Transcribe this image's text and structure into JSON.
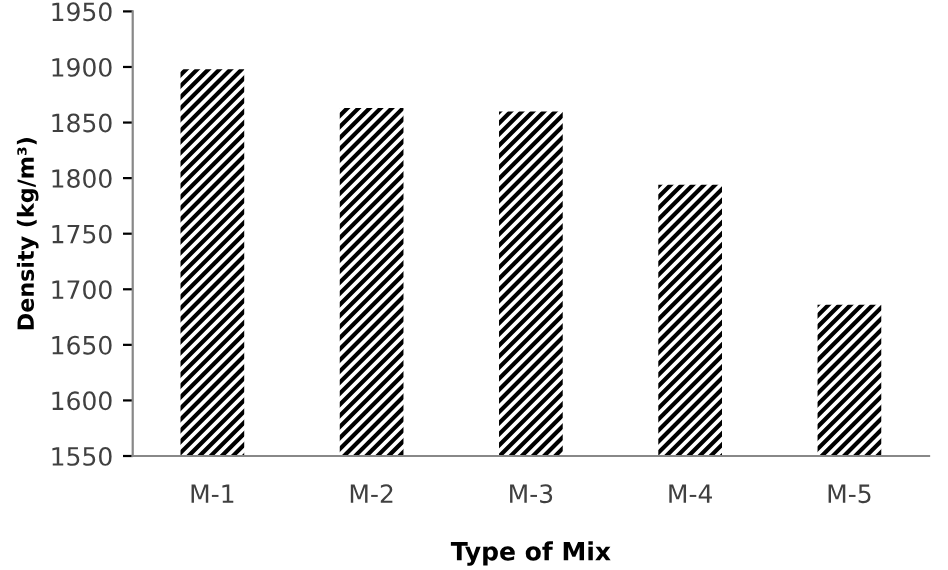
{
  "chart_data": {
    "type": "bar",
    "xlabel": "Type of Mix",
    "ylabel": "Density (kg/m³)",
    "categories": [
      "M-1",
      "M-2",
      "M-3",
      "M-4",
      "M-5"
    ],
    "values": [
      1898,
      1863,
      1860,
      1794,
      1686
    ],
    "color": "#000000",
    "ylim": [
      1550,
      1950
    ],
    "yticks": [
      1550,
      1600,
      1650,
      1700,
      1750,
      1800,
      1850,
      1900,
      1950
    ],
    "grid": false,
    "legend": false
  }
}
